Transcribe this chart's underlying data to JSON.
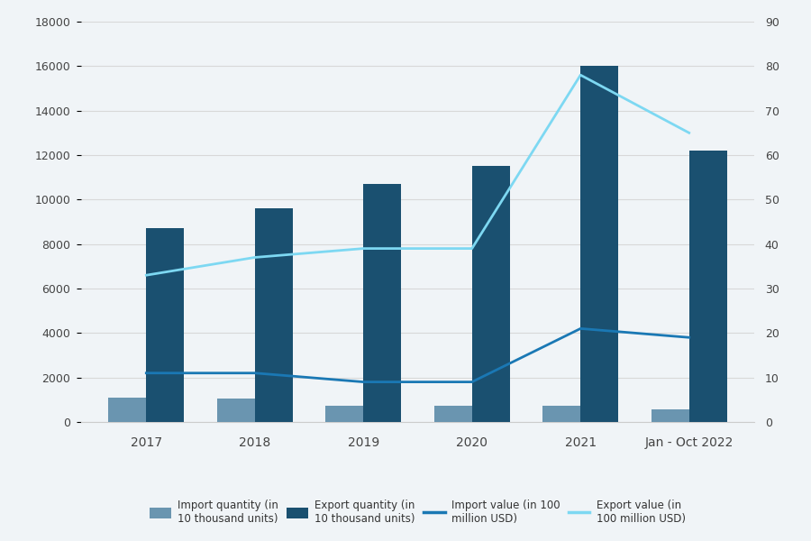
{
  "categories": [
    "2017",
    "2018",
    "2019",
    "2020",
    "2021",
    "Jan - Oct 2022"
  ],
  "import_quantity": [
    1100,
    1050,
    750,
    750,
    750,
    550
  ],
  "export_quantity": [
    8700,
    9600,
    10700,
    11500,
    16000,
    12200
  ],
  "import_value": [
    11,
    11,
    9,
    9,
    21,
    19
  ],
  "export_value": [
    33,
    37,
    39,
    39,
    78,
    65
  ],
  "import_qty_color": "#6a95b0",
  "export_qty_color": "#1a5070",
  "import_val_color": "#1a78b4",
  "export_val_color": "#7dd8f2",
  "background_color": "#f0f4f7",
  "ylim_left": [
    0,
    18000
  ],
  "ylim_right": [
    0,
    90
  ],
  "yticks_left": [
    0,
    2000,
    4000,
    6000,
    8000,
    10000,
    12000,
    14000,
    16000,
    18000
  ],
  "yticks_right": [
    0,
    10,
    20,
    30,
    40,
    50,
    60,
    70,
    80,
    90
  ],
  "legend_labels": [
    "Import quantity (in\n10 thousand units)",
    "Export quantity (in\n10 thousand units)",
    "Import value (in 100\nmillion USD)",
    "Export value (in\n100 million USD)"
  ],
  "bar_width": 0.35,
  "figsize": [
    9.0,
    6.0
  ],
  "dpi": 100,
  "grid_color": "#d8d8d8",
  "tick_color": "#444444",
  "spine_color": "#cccccc"
}
